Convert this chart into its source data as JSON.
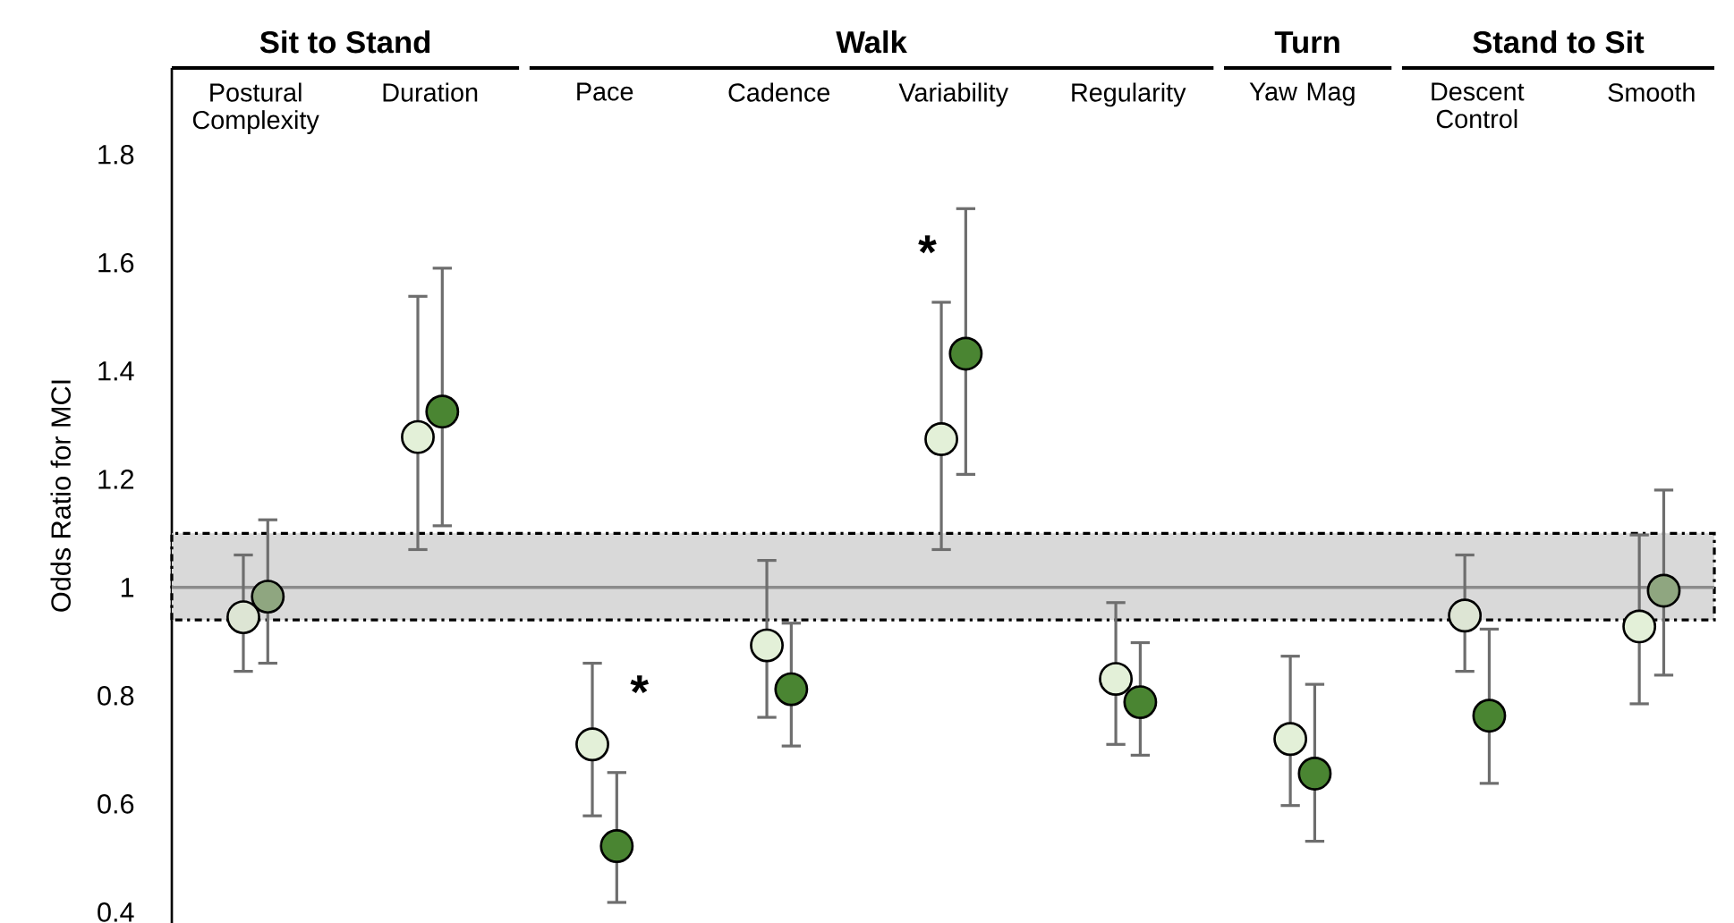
{
  "chart_data": {
    "type": "scatter",
    "ylabel": "Odds Ratio for MCI",
    "categories": [
      "Postural Complexity",
      "Duration",
      "Pace",
      "Cadence",
      "Variability",
      "Regularity",
      "Yaw Mag",
      "Descent Control",
      "Smooth"
    ],
    "series": [
      {
        "colors": [
          "#dde5d4",
          "#e3f0d8",
          "#e3f0d8",
          "#e3f0d8",
          "#e3f0d8",
          "#e3f0d8",
          "#e3f0d8",
          "#dde5d4",
          "#e3f0d8"
        ],
        "values": [
          0.945,
          1.278,
          0.71,
          0.893,
          1.274,
          0.831,
          0.72,
          0.948,
          0.928
        ],
        "errors": [
          [
            0.845,
            1.06
          ],
          [
            1.07,
            1.538
          ],
          [
            0.578,
            0.86
          ],
          [
            0.76,
            1.05
          ],
          [
            1.07,
            1.527
          ],
          [
            0.71,
            0.972
          ],
          [
            0.597,
            0.873
          ],
          [
            0.845,
            1.06
          ],
          [
            0.785,
            1.097
          ]
        ]
      },
      {
        "colors": [
          "#8fa680",
          "#4a8532",
          "#4a8532",
          "#4a8532",
          "#4a8532",
          "#4a8532",
          "#4a8532",
          "#4a8532",
          "#8fa680"
        ],
        "values": [
          0.983,
          1.325,
          0.522,
          0.812,
          1.432,
          0.788,
          0.656,
          0.763,
          0.994
        ],
        "errors": [
          [
            0.86,
            1.125
          ],
          [
            1.114,
            1.59
          ],
          [
            0.418,
            0.658
          ],
          [
            0.707,
            0.934
          ],
          [
            1.209,
            1.7
          ],
          [
            0.69,
            0.898
          ],
          [
            0.531,
            0.821
          ],
          [
            0.638,
            0.923
          ],
          [
            0.838,
            1.18
          ]
        ]
      }
    ],
    "ylim": [
      0.38,
      1.96
    ],
    "yticks": [
      0.4,
      0.6,
      0.8,
      1,
      1.2,
      1.4,
      1.6,
      1.8
    ],
    "ref_lines": [
      {
        "axis": "y",
        "value": 1,
        "color": "#8c8c8c"
      }
    ],
    "bands": [
      {
        "axis": "y",
        "from": 0.94,
        "to": 1.1,
        "color": "#d9d9d9"
      }
    ],
    "annotations": [
      "Sit to Stand",
      "Walk",
      "Turn",
      "Stand to Sit",
      "*",
      "*"
    ],
    "marker": "circle",
    "tick_labels": "y"
  }
}
